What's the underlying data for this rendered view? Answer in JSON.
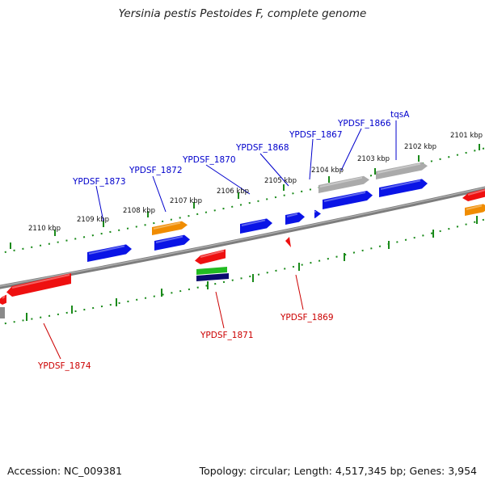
{
  "title": "Yersinia pestis Pestoides F, complete genome",
  "footer": {
    "accession": "Accession: NC_009381",
    "summary": "Topology: circular; Length: 4,517,345 bp; Genes: 3,954"
  },
  "colors": {
    "backbone": "#7d7d7d",
    "tick_upper": "#1a8a1a",
    "tick_lower": "#1a8a1a",
    "forward_gene": "#0a14e6",
    "reverse_gene": "#ee1010",
    "orange_gene": "#f08c00",
    "gray_gene": "#aaaaaa",
    "green_gene": "#22bb22",
    "navy_gene": "#0a0a70",
    "label_blue": "#0000cc",
    "label_red": "#cc0000"
  },
  "kbp_labels": [
    "2101 kbp",
    "2102 kbp",
    "2103 kbp",
    "2104 kbp",
    "2105 kbp",
    "2106 kbp",
    "2107 kbp",
    "2108 kbp",
    "2109 kbp",
    "2110 kbp"
  ],
  "gene_labels_top": [
    "tqsA",
    "YPDSF_1866",
    "YPDSF_1867",
    "YPDSF_1868",
    "YPDSF_1870",
    "YPDSF_1872",
    "YPDSF_1873"
  ],
  "gene_labels_bottom": [
    "YPDSF_1869",
    "YPDSF_1871",
    "YPDSF_1874"
  ]
}
